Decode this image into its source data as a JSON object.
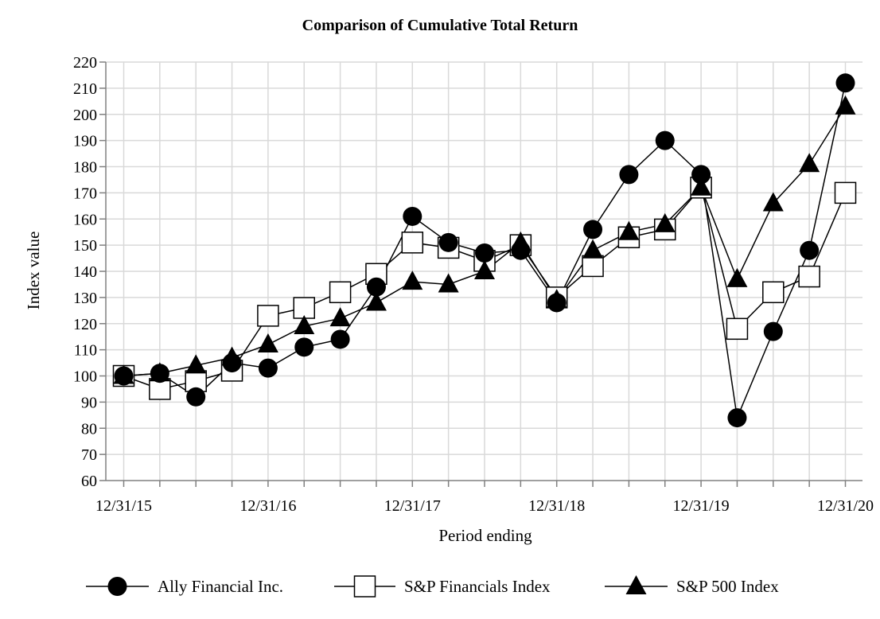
{
  "chart_data": {
    "type": "line",
    "title": "Comparison of Cumulative Total Return",
    "xlabel": "Period ending",
    "ylabel": "Index value",
    "ylim": [
      60,
      220
    ],
    "yticks": [
      60,
      70,
      80,
      90,
      100,
      110,
      120,
      130,
      140,
      150,
      160,
      170,
      180,
      190,
      200,
      210,
      220
    ],
    "grid": true,
    "legend_position": "bottom",
    "x_count": 21,
    "x_tick_labels": [
      {
        "index": 0,
        "label": "12/31/15"
      },
      {
        "index": 4,
        "label": "12/31/16"
      },
      {
        "index": 8,
        "label": "12/31/17"
      },
      {
        "index": 12,
        "label": "12/31/18"
      },
      {
        "index": 16,
        "label": "12/31/19"
      },
      {
        "index": 20,
        "label": "12/31/20"
      }
    ],
    "series": [
      {
        "name": "Ally Financial Inc.",
        "marker": "circle",
        "values": [
          100,
          101,
          92,
          105,
          103,
          111,
          114,
          134,
          161,
          151,
          147,
          148,
          128,
          156,
          177,
          190,
          177,
          84,
          117,
          148,
          212
        ]
      },
      {
        "name": "S&P Financials Index",
        "marker": "square",
        "values": [
          100,
          95,
          98,
          102,
          123,
          126,
          132,
          139,
          151,
          149,
          144,
          150,
          130,
          142,
          153,
          156,
          172,
          118,
          132,
          138,
          170
        ]
      },
      {
        "name": "S&P 500 Index",
        "marker": "triangle",
        "values": [
          100,
          101,
          104,
          107,
          112,
          119,
          122,
          128,
          136,
          135,
          140,
          151,
          129,
          148,
          155,
          158,
          172,
          137,
          166,
          181,
          203
        ]
      }
    ]
  },
  "colors": {
    "line": "#000000",
    "grid": "#d9d9d9",
    "axis": "#808080",
    "background": "#ffffff"
  }
}
